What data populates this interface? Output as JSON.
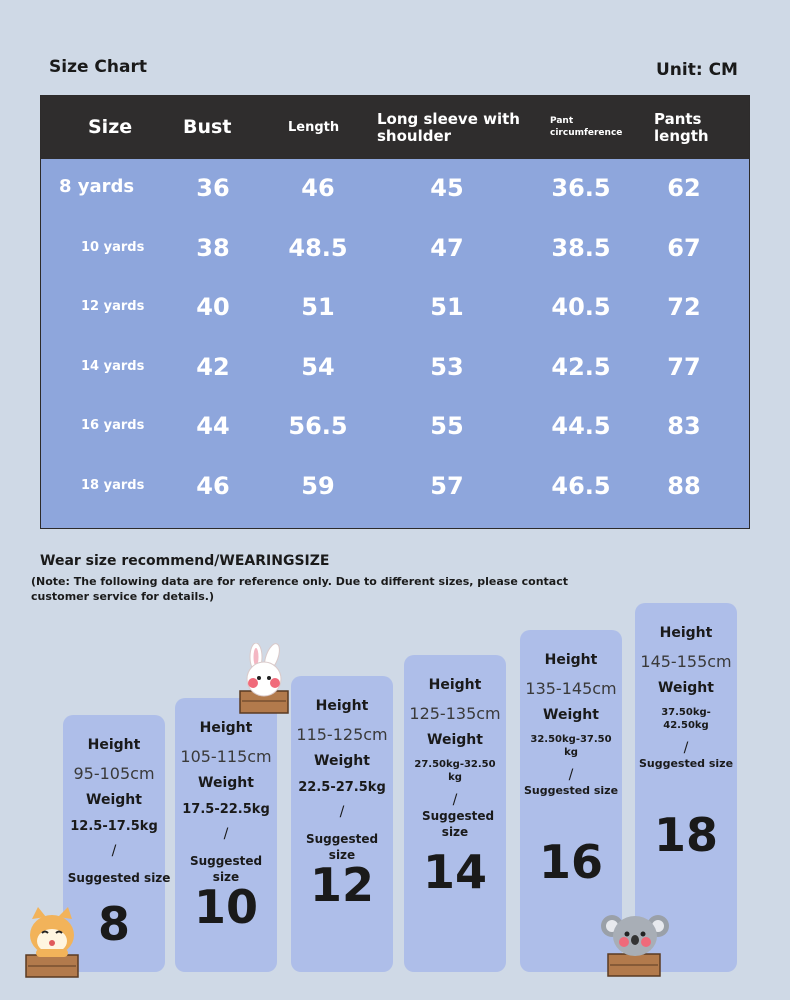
{
  "header": {
    "title": "Size Chart",
    "unit": "Unit: CM"
  },
  "table": {
    "columns": [
      "Size",
      "Bust",
      "Length",
      "Long sleeve with shoulder",
      "Pant circumference",
      "Pants length"
    ],
    "rows": [
      {
        "size": "8 yards",
        "bust": "36",
        "length": "46",
        "sleeve": "45",
        "pant_circ": "36.5",
        "pants_length": "62"
      },
      {
        "size": "10 yards",
        "bust": "38",
        "length": "48.5",
        "sleeve": "47",
        "pant_circ": "38.5",
        "pants_length": "67"
      },
      {
        "size": "12 yards",
        "bust": "40",
        "length": "51",
        "sleeve": "51",
        "pant_circ": "40.5",
        "pants_length": "72"
      },
      {
        "size": "14 yards",
        "bust": "42",
        "length": "54",
        "sleeve": "53",
        "pant_circ": "42.5",
        "pants_length": "77"
      },
      {
        "size": "16 yards",
        "bust": "44",
        "length": "56.5",
        "sleeve": "55",
        "pant_circ": "44.5",
        "pants_length": "83"
      },
      {
        "size": "18 yards",
        "bust": "46",
        "length": "59",
        "sleeve": "57",
        "pant_circ": "46.5",
        "pants_length": "88"
      }
    ]
  },
  "recommend": {
    "title": "Wear size recommend/WEARINGSIZE",
    "note": "(Note: The following data are for reference only. Due to different sizes, please contact customer service for details.)",
    "height_label": "Height",
    "weight_label": "Weight",
    "slash": "/",
    "suggested_label": "Suggested size",
    "cards": [
      {
        "height": "95-105cm",
        "weight": "12.5-17.5kg",
        "size": "8"
      },
      {
        "height": "105-115cm",
        "weight": "17.5-22.5kg",
        "size": "10"
      },
      {
        "height": "115-125cm",
        "weight": "22.5-27.5kg",
        "size": "12"
      },
      {
        "height": "125-135cm",
        "weight": "27.50kg-32.50 kg",
        "size": "14"
      },
      {
        "height": "135-145cm",
        "weight": "32.50kg-37.50 kg",
        "size": "16"
      },
      {
        "height": "145-155cm",
        "weight": "37.50kg-42.50kg",
        "size": "18"
      }
    ]
  },
  "icons": {
    "bunny": "bunny-mascot-icon",
    "cat": "cat-mascot-icon",
    "koala": "koala-mascot-icon"
  },
  "colors": {
    "table_header": "#2f2d2d",
    "table_body": "#8ea6dc",
    "card": "#aebee9",
    "background": "#cfd9e6"
  }
}
